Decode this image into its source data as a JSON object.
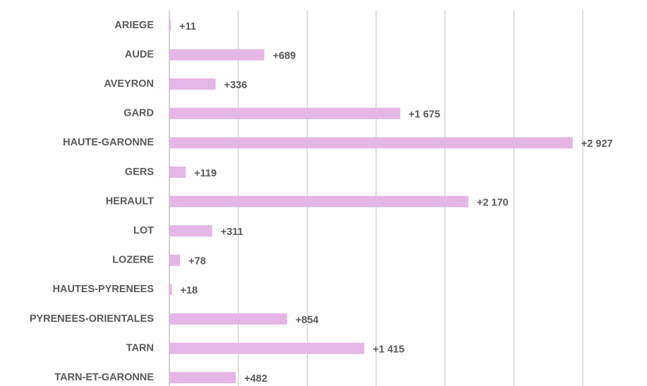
{
  "chart_data": {
    "type": "barh",
    "categories": [
      "ARIEGE",
      "AUDE",
      "AVEYRON",
      "GARD",
      "HAUTE-GARONNE",
      "GERS",
      "HERAULT",
      "LOT",
      "LOZERE",
      "HAUTES-PYRENEES",
      "PYRENEES-ORIENTALES",
      "TARN",
      "TARN-ET-GARONNE"
    ],
    "values": [
      11,
      689,
      336,
      1675,
      2927,
      119,
      2170,
      311,
      78,
      18,
      854,
      1415,
      482
    ],
    "value_labels": [
      "+11",
      "+689",
      "+336",
      "+1 675",
      "+2 927",
      "+119",
      "+2 170",
      "+311",
      "+78",
      "+18",
      "+854",
      "+1 415",
      "+482"
    ],
    "color": "#e4b6e6",
    "xlim": [
      0,
      3000
    ],
    "xticks": [
      0,
      500,
      1000,
      1500,
      2000,
      2500,
      3000
    ],
    "grid": true
  }
}
